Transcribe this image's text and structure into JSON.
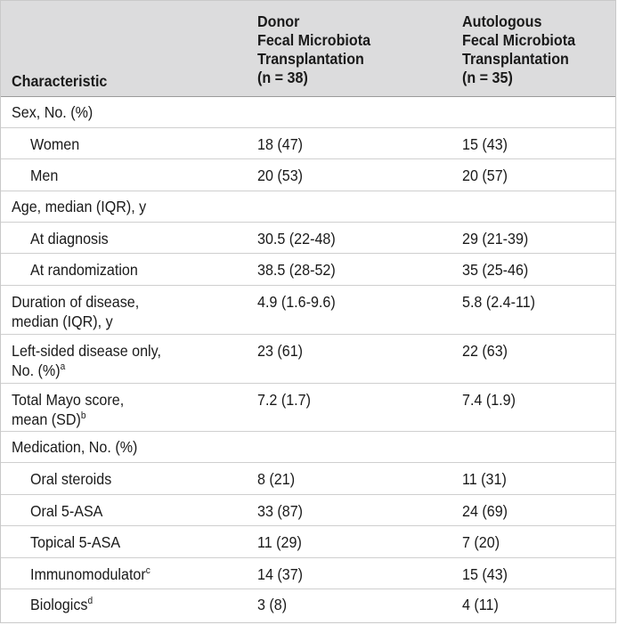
{
  "header": {
    "col1": "Characteristic",
    "col2": [
      "Donor",
      "Fecal Microbiota",
      "Transplantation",
      "(n = 38)"
    ],
    "col3": [
      "Autologous",
      "Fecal Microbiota",
      "Transplantation",
      "(n = 35)"
    ]
  },
  "rows": [
    {
      "label": "Sex, No. (%)",
      "donor": "",
      "auto": ""
    },
    {
      "label": "Women",
      "donor": "18 (47)",
      "auto": "15 (43)"
    },
    {
      "label": "Men",
      "donor": "20 (53)",
      "auto": "20 (57)"
    },
    {
      "label": "Age, median (IQR), y",
      "donor": "",
      "auto": ""
    },
    {
      "label": "At diagnosis",
      "donor": "30.5 (22-48)",
      "auto": "29 (21-39)"
    },
    {
      "label": "At randomization",
      "donor": "38.5 (28-52)",
      "auto": "35 (25-46)"
    },
    {
      "label": "Duration of disease,",
      "label2": "median (IQR), y",
      "donor": "4.9 (1.6-9.6)",
      "auto": "5.8 (2.4-11)"
    },
    {
      "label": "Left-sided disease only,",
      "label2": "No. (%)",
      "sup": "a",
      "donor": "23 (61)",
      "auto": "22 (63)"
    },
    {
      "label": "Total Mayo score,",
      "label2": "mean (SD)",
      "sup": "b",
      "donor": "7.2 (1.7)",
      "auto": "7.4 (1.9)"
    },
    {
      "label": "Medication, No. (%)",
      "donor": "",
      "auto": ""
    },
    {
      "label": "Oral steroids",
      "donor": "8 (21)",
      "auto": "11 (31)"
    },
    {
      "label": "Oral 5-ASA",
      "donor": "33 (87)",
      "auto": "24 (69)"
    },
    {
      "label": "Topical 5-ASA",
      "donor": "11 (29)",
      "auto": "7 (20)"
    },
    {
      "label": "Immunomodulator",
      "sup": "c",
      "donor": "14 (37)",
      "auto": "15 (43)"
    },
    {
      "label": "Biologics",
      "sup": "d",
      "donor": "3 (8)",
      "auto": "4 (11)"
    }
  ]
}
